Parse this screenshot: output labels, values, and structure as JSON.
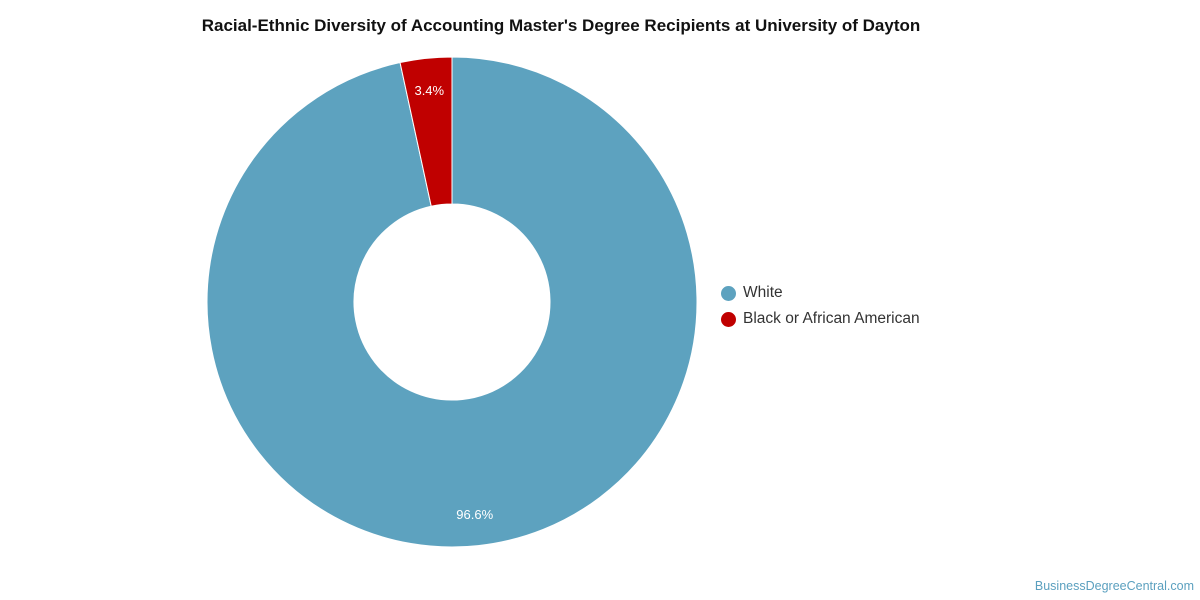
{
  "chart_data": {
    "type": "pie",
    "variant": "donut",
    "title": "Racial-Ethnic Diversity of Accounting Master's Degree Recipients at University of Dayton",
    "slices": [
      {
        "name": "White",
        "value": 96.6,
        "label": "96.6%",
        "color": "#5da2bf"
      },
      {
        "name": "Black or African American",
        "value": 3.4,
        "label": "3.4%",
        "color": "#c00000"
      }
    ],
    "legend_position": "right"
  },
  "footer": {
    "credit": "BusinessDegreeCentral.com"
  }
}
